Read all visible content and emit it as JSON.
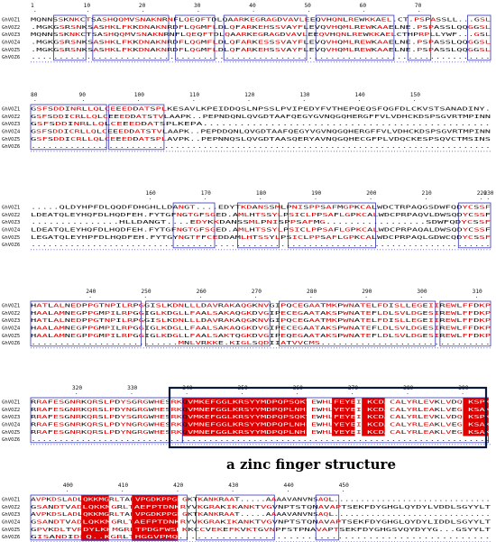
{
  "caption": "a zinc finger structure",
  "colors": {
    "conserved_bg": "#e00000",
    "similar_fg": "#e00000",
    "frame": "#3333bb",
    "highlight": "#0b1a3a"
  },
  "blocks": [
    {
      "ruler": [
        "1",
        "10",
        "20",
        "30",
        "40",
        "50",
        "60",
        "70"
      ],
      "rows": [
        {
          "name": "GhVOZ1",
          "seq": "MQNNSSKNKCTSASHQQMVSNAKNRNFLQEQFTDLQAARKEGRAGDVAVLEEQVHQNLREWKKAEL.CT.PSPASSLL...GSL"
        },
        {
          "name": "GhVOZ2",
          "seq": ".MGKGSRSNKSASHKLFKKDNAKNRDFLQGMFLDLQFARKEHSSVAYFLEVQVHQMLREWKAAELNE.PSPASSLQQGGSL"
        },
        {
          "name": "GhVOZ3",
          "seq": "MQNNSSKNKCTSASHQQMVSNAKNRNFLQEQFTDLQAARKEGRAGDVAVLEEQVHQNLREWKKAELCTHPRPLLYWF...GSL"
        },
        {
          "name": "GhVOZ4",
          "seq": ".MGKGSRSNKSASHKLFKKDNAKNRDFLQGMFLDLQFARKESSSVAYFLEVQVHQMLREWKAAELNE.PSPASSLQQGGSL"
        },
        {
          "name": "GhVOZ5",
          "seq": ".MGKGSRSNKSASHKLFKKDNAKNRDFLQGMFLDLQFARKEHSSVAYFLEVQVHQMLREWKAAELNE.PSPASSLQQGGSL"
        },
        {
          "name": "GhVOZ6",
          "seq": "..................................................................................."
        }
      ]
    },
    {
      "ruler": [
        "80",
        "90",
        "100",
        "110",
        "120",
        "130",
        "140",
        "150"
      ],
      "rows": [
        {
          "name": "GhVOZ1",
          "seq": "GSFSDDINRLLQLCEEEDDATSPLKESAVLKPEIDDQSLNPSSLPVIPEDYFVTHEPQEQSFQGFDLCKVSTSANADINY."
        },
        {
          "name": "GhVOZ2",
          "seq": "GSFSDDICRLLQLCEEEDDATSTVLAAPK..PEPNDQNLQVGDTAAFQEGYGVNQGQHERGFFVLVDHCKDSPSGVRTMPINN"
        },
        {
          "name": "GhVOZ3",
          "seq": "GSFSDDINRLLQLCEEEDDATSPLKEPA..............................................."
        },
        {
          "name": "GhVOZ4",
          "seq": "GSFSDDICRLLQLCEEEDDATSTVLAAPK..PEPDDQNLQVGDTAAFQEGYVGVNQGQHERGFFVLVDHCKDSPSGVRTMPINN"
        },
        {
          "name": "GhVOZ5",
          "seq": "GSFSDDICRLLQLCEEEDDATSPLAVPK..PEPNNQSLQVGDTAASQERYAVNQGQHECGFPLVDQCKESPSQVCTMSINS"
        },
        {
          "name": "GhVOZ6",
          "seq": "..................................................................................."
        }
      ]
    },
    {
      "ruler": [
        "160",
        "170",
        "180",
        "190",
        "200",
        "210",
        "220",
        "230"
      ],
      "rows": [
        {
          "name": "GhVOZ1",
          "seq": ".....QLDYHPFDLQQDFDHGHLLDANGT....EDYTKDANSSMLPNISPPSAFMGPKCALWDCTRPAQGSDWFQDYCSSF"
        },
        {
          "name": "GhVOZ2",
          "seq": "LDEATQLEYHQFDLHQDFEH.FYTGFNGTGFSGED.AMLHTSSYLPSICLPPSAFLGPKCALWDCPRPAQVLDWSQDYCSSF"
        },
        {
          "name": "GhVOZ3",
          "seq": "...............HLLDANGT....EDYKKDANSSMLPNISPPSAFMG.................SDWFQDYCSSF"
        },
        {
          "name": "GhVOZ4",
          "seq": "LDEATQLEYHQFDLHQDFEH.FYTGFNGTGFSGED.AMLHTSSYLPSICLPPSAFLGPKCALWDCPRPAQALDWSQDYCSSF"
        },
        {
          "name": "GhVOZ5",
          "seq": "LEGATQLEYHPFDLHQDFEH.FYTGYNGTFFCEDDAMLHTSSYLPSICLPPSAFLGPKCALWDCPRPAQLGDWCQDYCSSF"
        },
        {
          "name": "GhVOZ6",
          "seq": "..................................................................................."
        }
      ]
    },
    {
      "ruler": [
        "240",
        "250",
        "260",
        "270",
        "280",
        "290",
        "300",
        "310"
      ],
      "rows": [
        {
          "name": "GhVOZ1",
          "seq": "HATLALNEDPPGTNPILRPGGISLKDNLLLDAVRAKAQGKNVGIPQCEGAATMKPWNATELFDISLLEGEIIREWLFFDKP"
        },
        {
          "name": "GhVOZ2",
          "seq": "HAALAMNEGPPGMPILRPGGIGLKDGLLFAALSAKAQGKDVGIPECEGAATAKSPWNATEFLDLSVLDGESIREWLFFDKP"
        },
        {
          "name": "GhVOZ3",
          "seq": "HATLALNEDPPGTNPILRPGGISLKDNLLLDAVRAKAQGKNVGIPQCEGAATMKPWNATELFDISLLEGEIIREWLFFDKP"
        },
        {
          "name": "GhVOZ4",
          "seq": "HAALAMNEGPPGMPILRPGGIGLKDGLLFAALSAKAQGKDVGIPECEGAATAKSPWNATEFLDLSVLDGESIREWLFFDKP"
        },
        {
          "name": "GhVOZ5",
          "seq": "HAALAMNEGPPGMPILRPGGIGLKDGLLFAALSAKTQGKDVGIPEQEGAATAKSPWNATEFLDLSVLDGESIREWLFFDKP"
        },
        {
          "name": "GhVOZ6",
          "seq": "..........................MNLVRKKE.KIGLSQDIIATVVCMS.............................."
        }
      ]
    },
    {
      "ruler": [
        "320",
        "330",
        "340",
        "350",
        "360",
        "370",
        "380",
        "390"
      ],
      "rows": [
        {
          "name": "GhVOZ1",
          "seq": "RRAFESGNRKQRSLPDYSGRGWHESRKQVMKEFGGLKRSYYMDPQPSQKYEWHLFEYEINKCDACALYRLEVKLVDQKKSPK"
        },
        {
          "name": "GhVOZ2",
          "seq": "RRAFESGNRKQRSLPDYNGRGWHESRKQVMNEFGGLKRSYYMDPQPLNHFEWHLYEYEINKCDACALYRLEAKLVEGKKSAK"
        },
        {
          "name": "GhVOZ3",
          "seq": "RRAFESGNRKQRSLPDYSGRGWHESRKQVMKEFGGLKRSYYMDPQPSQKYEWHLFEYEINKCDACALYRLEVKLVDQKKSPK"
        },
        {
          "name": "GhVOZ4",
          "seq": "RRAFESGNRKQRSLPDYNGRGWHESRKQVMNEFGGLKRSYYMDPQPLNHFEWHLYEYEINKCDACALYRLEAKLVEGKKSAK"
        },
        {
          "name": "GhVOZ5",
          "seq": "RRAFESGNRKQRSLPDYNGRGWHESRKQVMNEFGGLKRSYYMDPQPLNHFEWHLYEYEINKCDACALYRLEAKLVEGKKSAK"
        },
        {
          "name": "GhVOZ6",
          "seq": "..................................................................................."
        }
      ]
    },
    {
      "ruler": [
        "400",
        "410",
        "420",
        "430",
        "440",
        "450"
      ],
      "rows": [
        {
          "name": "GhVOZ1",
          "seq": "AVPKDSLADLQKKMGRLTAEVPGDKPPGKGKTKANKRAAT.....AAAAVANVNSAQL.............................."
        },
        {
          "name": "GhVOZ2",
          "seq": "GSANDTVADLQKKMGRLTAEFPTDNKRYVKGRAKIKANKTVGVNPTSTQNAVAPTSEKFDYGHGLQYDYLVDDLSGYYLT"
        },
        {
          "name": "GhVOZ3",
          "seq": "AVPKDSLADLQKKMGRLTAEVPGDKPPGKGKTKANKRAAT.....AAAAVANVNSAQL.............................."
        },
        {
          "name": "GhVOZ4",
          "seq": "GSANDTVADLQKKMGRLTAEFPTDNKRYVKGRAKIKANKTVGVNPTSTQNAVAPTSEKFDYGHGLQYDYLIDDLSGYYLT"
        },
        {
          "name": "GhVOZ5",
          "seq": "GPVKDLTVRDYLKKMGRLTPDGFWSNKKCCVEKEFKVKTGVNPFSTPNAVAPTSEKFDYGHGSVQYDYYG...GSYYLT"
        },
        {
          "name": "GhVOZ6",
          "seq": "GISANDIDLQ..KGRLTHGGVPMQ..................................................."
        }
      ]
    }
  ]
}
